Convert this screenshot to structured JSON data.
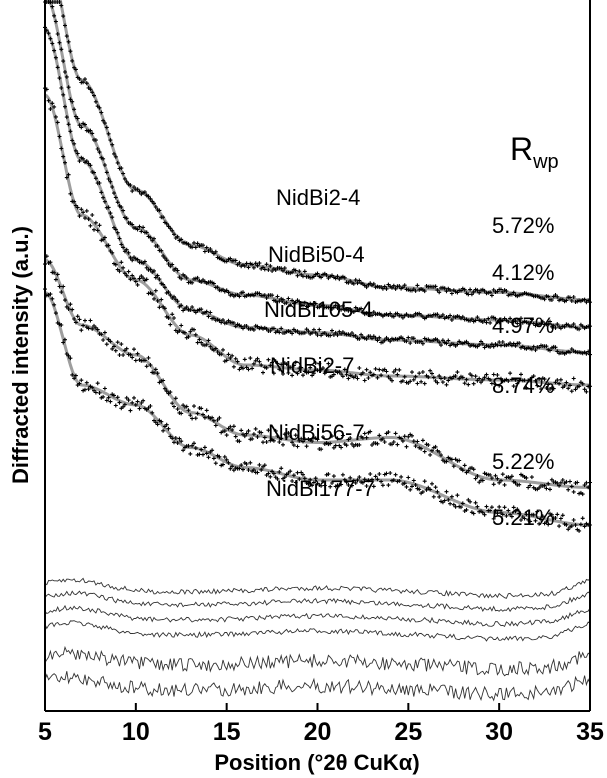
{
  "chart_data": {
    "type": "line",
    "title": "",
    "xlabel": "Position (°2θ CuKα)",
    "ylabel": "Diffracted intensity (a.u.)",
    "xlim": [
      5,
      35
    ],
    "x_ticks": [
      "5",
      "10",
      "15",
      "20",
      "25",
      "30",
      "35"
    ],
    "rwp_header": {
      "main": "R",
      "sub": "wp"
    },
    "series": [
      {
        "name": "NidBi2-4",
        "rwp": "5.72%",
        "ys": [
          780,
          520,
          300,
          190,
          150,
          130,
          105,
          95,
          80
        ]
      },
      {
        "name": "NidBi50-4",
        "rwp": "4.12%",
        "ys": [
          710,
          450,
          245,
          140,
          110,
          90,
          70,
          60,
          45
        ]
      },
      {
        "name": "NidBi105-4",
        "rwp": "4.97%",
        "ys": [
          670,
          410,
          210,
          110,
          75,
          65,
          50,
          40,
          25
        ]
      },
      {
        "name": "NidBi2-7",
        "rwp": "8.74%",
        "ys": [
          570,
          330,
          200,
          90,
          30,
          20,
          8,
          0,
          -10
        ]
      },
      {
        "name": "NidBi56-7",
        "rwp": "5.22%",
        "ys": [
          420,
          290,
          230,
          115,
          70,
          55,
          65,
          -20,
          -35
        ]
      },
      {
        "name": "NidBi177-7",
        "rwp": "5.21%",
        "ys": [
          405,
          220,
          180,
          95,
          55,
          30,
          30,
          -35,
          -60
        ]
      }
    ],
    "x_knots": [
      5,
      7,
      10,
      13,
      16,
      20,
      24,
      30,
      35
    ],
    "difference_curves_count": 6
  }
}
